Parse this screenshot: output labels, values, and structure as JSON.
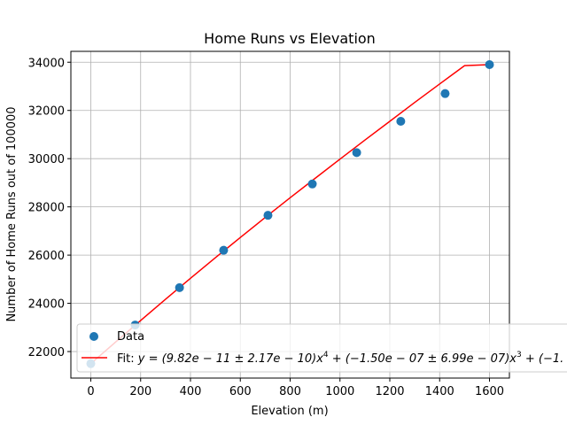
{
  "chart_data": {
    "type": "scatter",
    "title": "Home Runs vs Elevation",
    "xlabel": "Elevation (m)",
    "ylabel": "Number of Home Runs out of 100000",
    "xlim": [
      -80,
      1680
    ],
    "ylim": [
      20900,
      34450
    ],
    "xticks": [
      0,
      200,
      400,
      600,
      800,
      1000,
      1200,
      1400,
      1600
    ],
    "yticks": [
      22000,
      24000,
      26000,
      28000,
      30000,
      32000,
      34000
    ],
    "grid": true,
    "legend_position": "lower-left",
    "series": [
      {
        "name": "Data",
        "kind": "scatter",
        "color": "#1f77b4",
        "x": [
          0,
          178,
          356,
          533,
          711,
          889,
          1067,
          1244,
          1422,
          1600
        ],
        "y": [
          21500,
          23100,
          24650,
          26200,
          27650,
          28950,
          30250,
          31550,
          32700,
          33900
        ]
      },
      {
        "name": "Fit: $y = (9.82e-11 \\pm 2.17e-10)x^4 + (-1.50e-07 \\pm 6.99e-07)x^3 + (-1.",
        "kind": "line",
        "color": "#ff0000",
        "x": [
          0,
          100,
          200,
          300,
          400,
          500,
          600,
          700,
          800,
          900,
          1000,
          1100,
          1200,
          1300,
          1400,
          1500,
          1600
        ],
        "y": [
          21500,
          22400,
          23290,
          24170,
          25040,
          25890,
          26730,
          27560,
          28380,
          29180,
          29980,
          30770,
          31550,
          32330,
          33100,
          33860,
          33900
        ]
      }
    ]
  },
  "legend": {
    "data_label": "Data",
    "fit_prefix": "Fit: ",
    "fit_formula": "y = (9.82e − 11 ± 2.17e − 10)x",
    "fit_exp1": "4",
    "fit_mid": " + (−1.50e − 07 ± 6.99e − 07)x",
    "fit_exp2": "3",
    "fit_tail": " + (−1."
  }
}
